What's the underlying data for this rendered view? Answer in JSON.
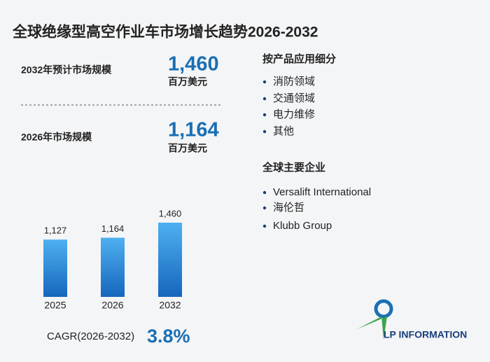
{
  "title": "全球绝缘型高空作业车市场增长趋势2026-2032",
  "stats": [
    {
      "label": "2032年预计市场规模",
      "value": "1,460",
      "unit": "百万美元"
    },
    {
      "label": "2026年市场规模",
      "value": "1,164",
      "unit": "百万美元"
    }
  ],
  "chart_data": {
    "type": "bar",
    "categories": [
      "2025",
      "2026",
      "2032"
    ],
    "values": [
      1127,
      1164,
      1460
    ],
    "value_labels": [
      "1,127",
      "1,164",
      "1,460"
    ],
    "color": "#2a86d6"
  },
  "cagr": {
    "label": "CAGR(2026-2032)",
    "value": "3.8%"
  },
  "segments": {
    "heading": "按产品应用细分",
    "items": [
      "消防领域",
      "交通领域",
      "电力维修",
      "其他"
    ]
  },
  "companies": {
    "heading": "全球主要企业",
    "items": [
      "Versalift International",
      "海伦哲",
      "Klubb Group"
    ]
  },
  "logo": "LP INFORMATION"
}
